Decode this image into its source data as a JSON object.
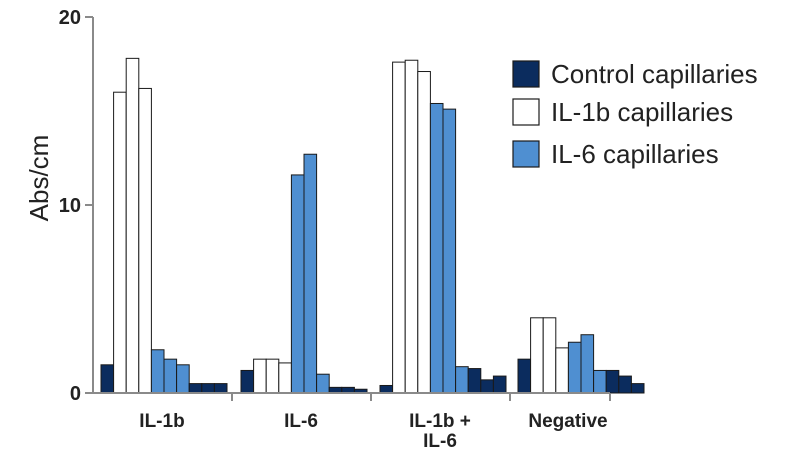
{
  "chart_data": {
    "type": "bar",
    "title": "",
    "xlabel": "",
    "ylabel": "Abs/cm",
    "ylim": [
      0,
      20
    ],
    "yticks": [
      "0",
      "10",
      "20"
    ],
    "grid": false,
    "legend_position": "top-right",
    "colors": {
      "Control capillaries": "#0b2c5e",
      "IL-1b capillaries": "#ffffff",
      "IL-6 capillaries": "#4f8fd1"
    },
    "categories": [
      {
        "label": "IL-1b",
        "label_lines": [
          "IL-1b"
        ]
      },
      {
        "label": "IL-6",
        "label_lines": [
          "IL-6"
        ]
      },
      {
        "label": "IL-1b + IL-6",
        "label_lines": [
          "IL-1b +",
          "IL-6"
        ]
      },
      {
        "label": "Negative",
        "label_lines": [
          "Negative"
        ]
      }
    ],
    "series": [
      {
        "name": "Control capillaries",
        "values": [
          [
            1.5
          ],
          [
            1.2
          ],
          [
            0.4
          ],
          [
            1.8
          ]
        ]
      },
      {
        "name": "IL-1b capillaries",
        "values": [
          [
            16.0,
            17.8,
            16.2
          ],
          [
            1.8,
            1.8,
            1.6
          ],
          [
            17.6,
            17.7,
            17.1
          ],
          [
            4.0,
            4.0,
            2.4
          ]
        ]
      },
      {
        "name": "IL-6 capillaries",
        "values": [
          [
            2.3,
            1.8,
            1.5
          ],
          [
            11.6,
            12.7,
            1.0
          ],
          [
            15.4,
            15.1,
            1.4
          ],
          [
            2.7,
            3.1,
            1.2
          ]
        ]
      },
      {
        "name": "Control capillaries",
        "values": [
          [
            0.5,
            0.5,
            0.5
          ],
          [
            0.3,
            0.3,
            0.2
          ],
          [
            1.3,
            0.7,
            0.9
          ],
          [
            1.2,
            0.9,
            0.5
          ]
        ]
      }
    ],
    "legend": [
      "Control capillaries",
      "IL-1b capillaries",
      "IL-6 capillaries"
    ]
  }
}
